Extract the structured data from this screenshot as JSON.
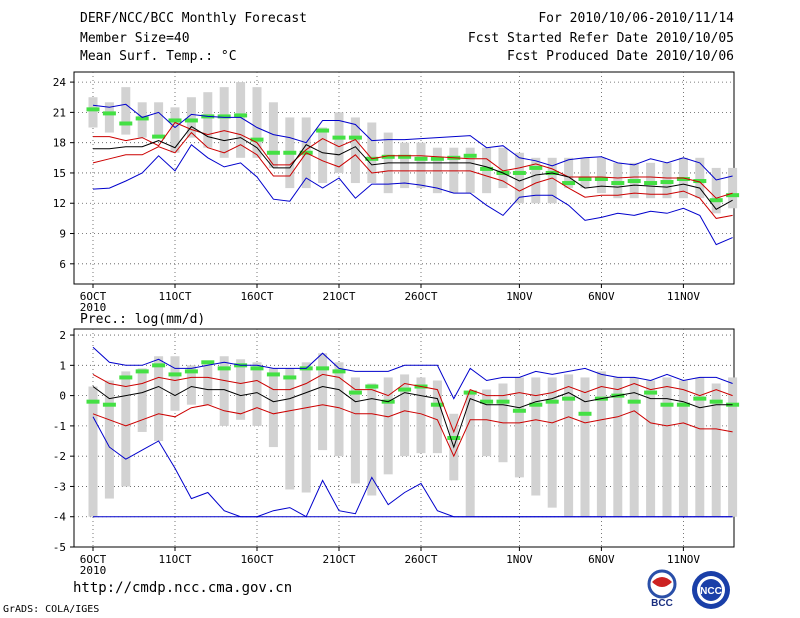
{
  "header": {
    "title": "DERF/NCC/BCC Monthly Forecast",
    "member": "Member Size=40",
    "variable": "Mean Surf. Temp.: °C",
    "period": "For 2010/10/06-2010/11/14",
    "started": "Fcst Started Refer Date 2010/10/05",
    "produced": "Fcst Produced Date 2010/10/06"
  },
  "footer": {
    "url": "http://cmdp.ncc.cma.gov.cn",
    "grads": "GrADS: COLA/IGES",
    "logo_bcc": "BCC",
    "logo_ncc": "NCC"
  },
  "colors": {
    "box": "#d2d2d2",
    "median": "#44e044",
    "mean": "#000000",
    "spread": "#cc0000",
    "extreme": "#0000cc",
    "grid": "#555555"
  },
  "chart_data": [
    {
      "type": "box-line",
      "title": "Mean Surf. Temp.: °C",
      "ylabel": "°C",
      "ylim": [
        4,
        25
      ],
      "yticks": [
        6,
        9,
        12,
        15,
        18,
        21,
        24
      ],
      "x_tick_labels": [
        "6OCT",
        "11OCT",
        "16OCT",
        "21OCT",
        "26OCT",
        "1NOV",
        "6NOV",
        "11NOV"
      ],
      "x_tick_days": [
        1,
        6,
        11,
        16,
        21,
        27,
        32,
        37
      ],
      "x_sub_label": "2010",
      "days": [
        1,
        2,
        3,
        4,
        5,
        6,
        7,
        8,
        9,
        10,
        11,
        12,
        13,
        14,
        15,
        16,
        17,
        18,
        19,
        20,
        21,
        22,
        23,
        24,
        25,
        26,
        27,
        28,
        29,
        30,
        31,
        32,
        33,
        34,
        35,
        36,
        37,
        38,
        39,
        40
      ],
      "box_low": [
        19.5,
        19.0,
        18.8,
        18.5,
        18.5,
        17.0,
        18.5,
        17.5,
        16.5,
        16.5,
        16.5,
        15.5,
        13.5,
        13.5,
        14.0,
        15.0,
        14.0,
        14.0,
        13.0,
        13.5,
        13.5,
        13.0,
        13.0,
        13.0,
        13.0,
        13.5,
        12.0,
        12.0,
        12.0,
        13.5,
        13.5,
        13.0,
        12.5,
        12.5,
        12.5,
        12.5,
        12.5,
        12.5,
        11.0,
        11.5
      ],
      "box_high": [
        22.5,
        22.0,
        23.5,
        22.0,
        22.0,
        21.5,
        22.5,
        23.0,
        23.5,
        24.0,
        23.5,
        22.0,
        20.5,
        20.5,
        19.5,
        21.0,
        20.5,
        20.0,
        19.0,
        18.0,
        18.0,
        17.5,
        17.5,
        17.5,
        17.5,
        17.5,
        17.0,
        16.5,
        16.5,
        16.5,
        16.5,
        16.5,
        16.0,
        16.0,
        16.0,
        16.0,
        16.5,
        16.5,
        15.5,
        15.5
      ],
      "median": [
        21.3,
        20.9,
        19.9,
        20.4,
        18.6,
        20.2,
        20.2,
        20.6,
        20.6,
        20.7,
        18.3,
        17.0,
        17.0,
        17.0,
        19.2,
        18.5,
        18.5,
        16.4,
        16.6,
        16.6,
        16.4,
        16.4,
        16.5,
        16.7,
        15.4,
        15.0,
        15.0,
        15.5,
        15.0,
        14.0,
        14.4,
        14.4,
        14.0,
        14.2,
        14.0,
        14.1,
        14.4,
        14.2,
        12.3,
        12.8
      ],
      "series": [
        {
          "name": "max",
          "values": [
            21.7,
            21.5,
            21.8,
            20.5,
            21.0,
            19.5,
            20.8,
            20.6,
            20.5,
            20.5,
            19.5,
            18.8,
            18.5,
            18.0,
            20.2,
            20.2,
            19.8,
            18.2,
            18.3,
            18.3,
            18.4,
            18.5,
            18.6,
            18.7,
            17.5,
            17.7,
            16.5,
            16.2,
            15.7,
            16.3,
            16.5,
            16.6,
            16.0,
            15.8,
            16.4,
            16.0,
            16.5,
            16.0,
            14.3,
            14.7
          ]
        },
        {
          "name": "hi",
          "values": [
            18.6,
            18.6,
            18.2,
            18.5,
            17.7,
            20.0,
            19.3,
            18.8,
            19.2,
            18.8,
            18.0,
            15.8,
            15.8,
            17.3,
            18.4,
            17.6,
            18.3,
            16.4,
            16.7,
            16.7,
            16.7,
            16.6,
            16.5,
            16.4,
            16.4,
            15.2,
            15.5,
            15.9,
            15.4,
            14.6,
            14.6,
            14.6,
            14.5,
            14.6,
            14.6,
            14.5,
            14.5,
            14.1,
            12.5,
            13.0
          ]
        },
        {
          "name": "mean",
          "values": [
            17.4,
            17.4,
            17.6,
            17.6,
            18.2,
            17.5,
            19.6,
            18.6,
            18.2,
            18.5,
            17.5,
            15.5,
            15.5,
            17.8,
            17.0,
            16.8,
            17.6,
            15.8,
            16.0,
            16.0,
            16.0,
            16.0,
            16.0,
            16.0,
            15.6,
            15.0,
            14.2,
            14.8,
            15.0,
            14.6,
            13.5,
            13.7,
            13.6,
            13.8,
            13.7,
            13.6,
            13.9,
            13.5,
            11.4,
            12.3
          ]
        },
        {
          "name": "lo",
          "values": [
            16.0,
            16.4,
            16.8,
            16.8,
            17.6,
            17.0,
            19.0,
            17.5,
            17.0,
            17.8,
            16.8,
            14.7,
            14.7,
            17.0,
            16.2,
            15.6,
            16.8,
            15.0,
            15.2,
            15.2,
            15.2,
            15.2,
            15.2,
            15.2,
            14.7,
            14.2,
            13.2,
            14.0,
            14.5,
            13.5,
            12.6,
            12.8,
            12.8,
            13.0,
            12.9,
            12.9,
            13.2,
            12.5,
            10.5,
            10.8
          ]
        },
        {
          "name": "min",
          "values": [
            13.4,
            13.5,
            14.2,
            15.0,
            16.7,
            15.2,
            17.8,
            16.5,
            15.6,
            16.0,
            14.6,
            12.4,
            12.2,
            14.5,
            13.5,
            14.5,
            12.5,
            13.9,
            13.9,
            14.0,
            13.8,
            13.5,
            13.0,
            13.0,
            11.8,
            10.8,
            12.6,
            12.8,
            12.8,
            11.8,
            10.3,
            10.6,
            11.0,
            10.8,
            11.2,
            11.0,
            11.5,
            10.8,
            7.9,
            8.6
          ]
        }
      ]
    },
    {
      "type": "box-line",
      "title": "Prec.: log(mm/d)",
      "ylabel": "log(mm/d)",
      "ylim": [
        -5,
        2.2
      ],
      "yticks": [
        -5,
        -4,
        -3,
        -2,
        -1,
        0,
        1,
        2
      ],
      "x_tick_labels": [
        "6OCT",
        "11OCT",
        "16OCT",
        "21OCT",
        "26OCT",
        "1NOV",
        "6NOV",
        "11NOV"
      ],
      "x_tick_days": [
        1,
        6,
        11,
        16,
        21,
        27,
        32,
        37
      ],
      "x_sub_label": "2010",
      "days": [
        1,
        2,
        3,
        4,
        5,
        6,
        7,
        8,
        9,
        10,
        11,
        12,
        13,
        14,
        15,
        16,
        17,
        18,
        19,
        20,
        21,
        22,
        23,
        24,
        25,
        26,
        27,
        28,
        29,
        30,
        31,
        32,
        33,
        34,
        35,
        36,
        37,
        38,
        39,
        40
      ],
      "box_low": [
        -4.0,
        -3.4,
        -3.0,
        -1.2,
        -1.5,
        -0.5,
        -0.3,
        -0.3,
        -1.0,
        -0.8,
        -1.0,
        -1.7,
        -3.1,
        -3.2,
        -1.8,
        -2.0,
        -2.9,
        -3.3,
        -2.6,
        -2.0,
        -1.9,
        -1.9,
        -2.8,
        -4.0,
        -2.0,
        -2.2,
        -2.7,
        -3.3,
        -3.7,
        -4.0,
        -4.0,
        -4.0,
        -4.0,
        -4.0,
        -4.0,
        -4.0,
        -4.0,
        -4.0,
        -4.0,
        -4.0
      ],
      "box_high": [
        0.3,
        0.5,
        0.8,
        0.9,
        1.3,
        1.3,
        1.0,
        1.1,
        1.3,
        1.2,
        1.1,
        0.9,
        0.9,
        1.1,
        1.4,
        1.1,
        0.6,
        0.4,
        0.6,
        0.7,
        0.6,
        0.5,
        -0.6,
        0.1,
        0.2,
        0.4,
        0.6,
        0.6,
        0.6,
        0.7,
        0.6,
        0.8,
        0.6,
        0.6,
        0.5,
        0.6,
        0.5,
        0.6,
        0.4,
        0.6
      ],
      "median": [
        -0.2,
        -0.3,
        0.6,
        0.8,
        1.0,
        0.7,
        0.8,
        1.1,
        0.9,
        1.0,
        0.9,
        0.7,
        0.6,
        0.9,
        0.9,
        0.8,
        0.1,
        0.3,
        -0.2,
        0.2,
        0.3,
        -0.3,
        -1.4,
        0.1,
        -0.2,
        -0.2,
        -0.5,
        -0.3,
        -0.2,
        -0.1,
        -0.6,
        -0.1,
        0.0,
        -0.2,
        0.1,
        -0.3,
        -0.3,
        -0.1,
        -0.2,
        -0.3
      ],
      "series": [
        {
          "name": "max",
          "values": [
            1.6,
            1.1,
            1.0,
            1.0,
            1.2,
            0.9,
            0.9,
            1.0,
            1.1,
            1.0,
            1.0,
            0.9,
            0.9,
            0.9,
            1.4,
            0.9,
            0.8,
            0.8,
            0.8,
            1.0,
            1.0,
            1.0,
            -0.1,
            0.9,
            0.5,
            0.6,
            0.6,
            0.8,
            0.7,
            0.8,
            0.9,
            0.7,
            0.6,
            0.6,
            0.5,
            0.7,
            0.5,
            0.6,
            0.6,
            0.4
          ]
        },
        {
          "name": "hi",
          "values": [
            0.7,
            0.4,
            0.3,
            0.4,
            0.6,
            0.5,
            0.6,
            0.6,
            0.5,
            0.4,
            0.5,
            0.2,
            0.2,
            0.4,
            0.7,
            0.6,
            0.2,
            0.2,
            0.0,
            0.4,
            0.3,
            0.2,
            -1.2,
            0.2,
            0.0,
            0.0,
            0.1,
            0.0,
            0.1,
            0.3,
            0.1,
            0.3,
            0.2,
            0.4,
            0.2,
            0.3,
            0.2,
            0.0,
            0.2,
            0.0
          ]
        },
        {
          "name": "mean",
          "values": [
            0.3,
            -0.1,
            0.0,
            0.1,
            0.3,
            0.0,
            0.3,
            0.2,
            0.2,
            0.0,
            0.1,
            -0.2,
            -0.1,
            0.1,
            0.3,
            0.2,
            -0.2,
            -0.1,
            -0.2,
            0.1,
            0.0,
            -0.1,
            -1.7,
            -0.1,
            -0.3,
            -0.3,
            -0.4,
            -0.2,
            -0.1,
            0.1,
            -0.2,
            -0.1,
            0.0,
            0.1,
            -0.1,
            -0.1,
            -0.2,
            -0.4,
            -0.3,
            -0.3
          ]
        },
        {
          "name": "lo",
          "values": [
            -0.6,
            -0.8,
            -1.0,
            -0.8,
            -0.6,
            -0.7,
            -0.4,
            -0.3,
            -0.5,
            -0.6,
            -0.4,
            -0.6,
            -0.5,
            -0.4,
            -0.3,
            -0.4,
            -0.6,
            -0.6,
            -0.7,
            -0.5,
            -0.6,
            -0.8,
            -2.0,
            -0.8,
            -0.8,
            -0.9,
            -0.9,
            -0.8,
            -0.9,
            -0.7,
            -0.9,
            -0.8,
            -0.7,
            -0.5,
            -0.9,
            -1.0,
            -0.9,
            -1.1,
            -1.1,
            -1.2
          ]
        },
        {
          "name": "min",
          "values": [
            -0.7,
            -1.7,
            -2.1,
            -1.8,
            -1.5,
            -2.4,
            -3.4,
            -3.2,
            -3.8,
            -4.0,
            -4.0,
            -3.8,
            -3.7,
            -4.0,
            -2.8,
            -3.8,
            -3.9,
            -2.7,
            -3.6,
            -3.2,
            -2.9,
            -3.8,
            -4.0,
            -4.0,
            -4.0,
            -4.0,
            -4.0,
            -4.0,
            -4.0,
            -4.0,
            -4.0,
            -4.0,
            -4.0,
            -4.0,
            -4.0,
            -4.0,
            -4.0,
            -4.0,
            -4.0,
            -4.0
          ]
        },
        {
          "name": "floor",
          "values": [
            -4.0,
            -4.0,
            -4.0,
            -4.0,
            -4.0,
            -4.0,
            -4.0,
            -4.0,
            -4.0,
            -4.0,
            -4.0,
            -4.0,
            -4.0,
            -4.0,
            -4.0,
            -4.0,
            -4.0,
            -4.0,
            -4.0,
            -4.0,
            -4.0,
            -4.0,
            -4.0,
            -4.0,
            -4.0,
            -4.0,
            -4.0,
            -4.0,
            -4.0,
            -4.0,
            -4.0,
            -4.0,
            -4.0,
            -4.0,
            -4.0,
            -4.0,
            -4.0,
            -4.0,
            -4.0,
            -4.0
          ]
        }
      ]
    }
  ]
}
